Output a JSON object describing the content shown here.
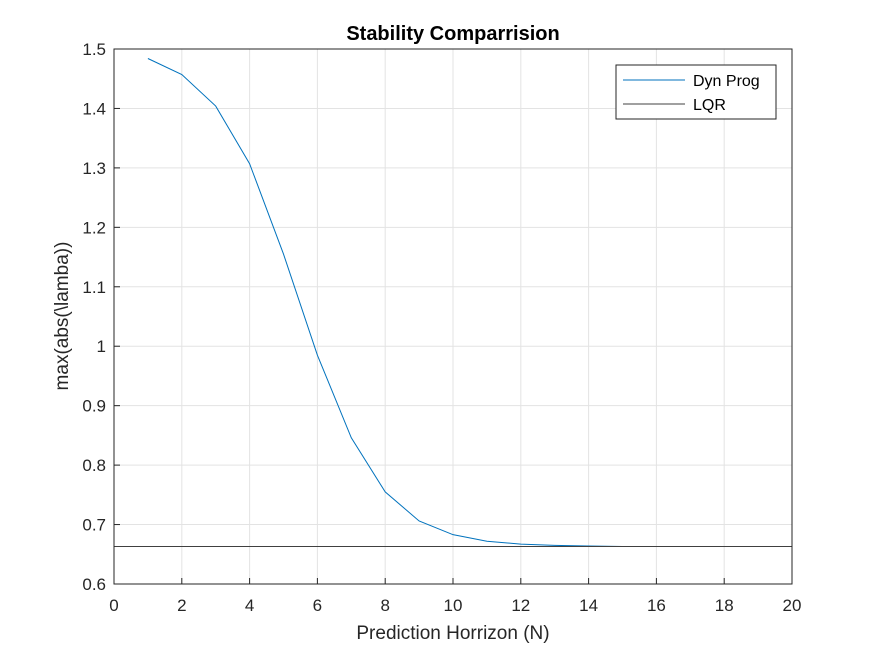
{
  "chart_data": {
    "type": "line",
    "title": "Stability Comparrision",
    "xlabel": "Prediction Horrizon (N)",
    "ylabel": "max(abs(\\lamba))",
    "xlim": [
      0,
      20
    ],
    "ylim": [
      0.6,
      1.5
    ],
    "xticks": [
      "0",
      "2",
      "4",
      "6",
      "8",
      "10",
      "12",
      "14",
      "16",
      "18",
      "20"
    ],
    "yticks": [
      "0.6",
      "0.7",
      "0.8",
      "0.9",
      "1",
      "1.1",
      "1.2",
      "1.3",
      "1.4",
      "1.5"
    ],
    "grid": true,
    "legend_position": "top-right",
    "series": [
      {
        "name": "Dyn Prog",
        "color": "#0072BD",
        "x": [
          1,
          2,
          3,
          4,
          5,
          6,
          7,
          8,
          9,
          10,
          11,
          12,
          13,
          14,
          15,
          16,
          17,
          18,
          19,
          20
        ],
        "y": [
          1.484,
          1.457,
          1.404,
          1.307,
          1.155,
          0.985,
          0.846,
          0.755,
          0.706,
          0.683,
          0.672,
          0.667,
          0.665,
          0.664,
          0.663,
          0.663,
          0.663,
          0.663,
          0.663,
          0.663
        ]
      },
      {
        "name": "LQR",
        "color": "#404040",
        "x": [
          0,
          20
        ],
        "y": [
          0.663,
          0.663
        ]
      }
    ]
  }
}
